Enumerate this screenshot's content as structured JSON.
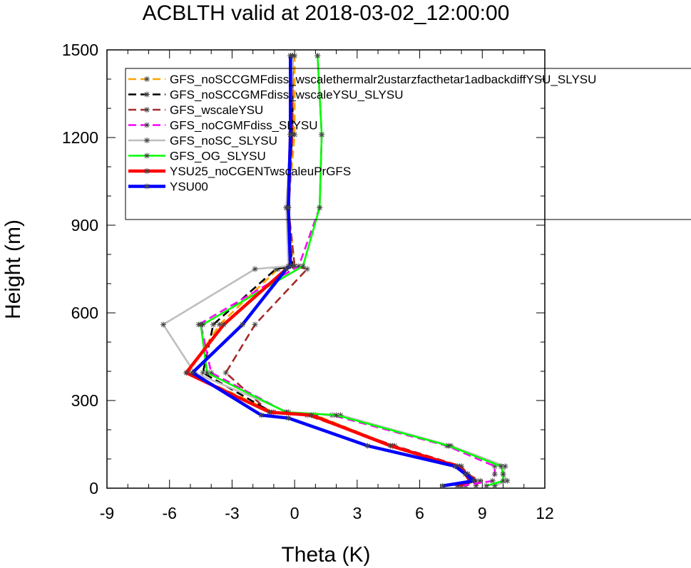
{
  "chart_data": {
    "type": "line",
    "title": "ACBLTH valid at 2018-03-02_12:00:00",
    "xlabel": "Theta (K)",
    "ylabel": "Height (m)",
    "xlim": [
      -9,
      12
    ],
    "ylim": [
      0,
      1500
    ],
    "xticks": [
      "-9",
      "-6",
      "-3",
      "0",
      "3",
      "6",
      "9",
      "12"
    ],
    "yticks": [
      "0",
      "300",
      "600",
      "900",
      "1200",
      "1500"
    ],
    "legend_position": "top-right",
    "series": [
      {
        "name": "GFS_noSCCGMFdiss_wscalethermalr2ustarzfacthetar1adbackdiffYSU_SLYSU",
        "color": "#ffa500",
        "dash": "dashed",
        "x": [
          8.2,
          8.6,
          8.3,
          7.8,
          4.7,
          1.0,
          -1.0,
          -5.1,
          -3.6,
          -0.8,
          0.0,
          -0.3,
          0.0,
          0.0
        ],
        "y": [
          8,
          25,
          48,
          75,
          145,
          250,
          260,
          395,
          560,
          750,
          760,
          960,
          1210,
          1480
        ]
      },
      {
        "name": "GFS_noSCCGMFdiss_wscaleYSU_SLYSU",
        "color": "#000000",
        "dash": "dashed",
        "x": [
          8.0,
          8.7,
          8.3,
          7.9,
          4.7,
          0.9,
          -1.1,
          -4.4,
          -3.9,
          -0.9,
          -0.1,
          -0.4,
          -0.1,
          -0.1
        ],
        "y": [
          8,
          25,
          48,
          75,
          145,
          250,
          260,
          395,
          560,
          750,
          760,
          960,
          1210,
          1480
        ]
      },
      {
        "name": "GFS_wscaleYSU",
        "color": "#a52a2a",
        "dash": "dashed",
        "x": [
          8.7,
          8.9,
          8.3,
          8.0,
          4.8,
          0.6,
          -1.2,
          -3.3,
          -1.9,
          0.6,
          0.0,
          -0.3,
          -0.1,
          -0.1
        ],
        "y": [
          8,
          25,
          48,
          75,
          145,
          250,
          260,
          395,
          560,
          750,
          760,
          960,
          1210,
          1480
        ]
      },
      {
        "name": "GFS_noCGMFdiss_SLYSU",
        "color": "#ff00ff",
        "dash": "dashed",
        "x": [
          8.0,
          9.5,
          9.6,
          9.6,
          7.3,
          1.8,
          -0.4,
          -4.0,
          -4.5,
          -4.6,
          0.2,
          1.2,
          1.3,
          1.1
        ],
        "y": [
          8,
          25,
          48,
          75,
          145,
          250,
          260,
          395,
          560,
          560,
          760,
          960,
          1210,
          1480
        ]
      },
      {
        "name": "GFS_noSC_SLYSU",
        "color": "#bebebe",
        "dash": "solid",
        "x": [
          9.6,
          10.2,
          10.0,
          10.1,
          7.5,
          2.2,
          -0.3,
          -4.8,
          -6.3,
          -1.9,
          -0.3,
          -0.4,
          -0.2,
          -0.1
        ],
        "y": [
          8,
          25,
          48,
          75,
          145,
          250,
          260,
          395,
          560,
          750,
          760,
          960,
          1210,
          1480
        ]
      },
      {
        "name": "GFS_OG_SLYSU",
        "color": "#00ff00",
        "dash": "solid",
        "x": [
          9.2,
          10.0,
          10.0,
          9.9,
          7.4,
          2.0,
          -0.4,
          -4.2,
          -4.5,
          -4.4,
          0.4,
          1.2,
          1.3,
          1.1
        ],
        "y": [
          8,
          25,
          48,
          75,
          145,
          250,
          260,
          395,
          560,
          560,
          760,
          960,
          1210,
          1480
        ]
      },
      {
        "name": "YSU25_noCGENTwscaleuPrGFS",
        "color": "#ff0000",
        "dash": "solid",
        "x": [
          7.8,
          8.4,
          8.2,
          7.8,
          4.6,
          0.8,
          -1.2,
          -5.2,
          -3.4,
          -0.4,
          -0.2,
          -0.3,
          -0.2,
          -0.2
        ],
        "y": [
          8,
          25,
          48,
          75,
          145,
          250,
          260,
          395,
          560,
          750,
          760,
          960,
          1210,
          1480
        ]
      },
      {
        "name": "YSU00",
        "color": "#0000ff",
        "dash": "solid",
        "x": [
          7.1,
          8.6,
          8.2,
          7.7,
          3.5,
          -0.3,
          -1.6,
          -4.9,
          -2.5,
          -0.4,
          -0.2,
          -0.3,
          -0.2,
          -0.2
        ],
        "y": [
          8,
          25,
          48,
          75,
          145,
          240,
          250,
          395,
          560,
          750,
          760,
          960,
          1210,
          1480
        ]
      }
    ]
  }
}
